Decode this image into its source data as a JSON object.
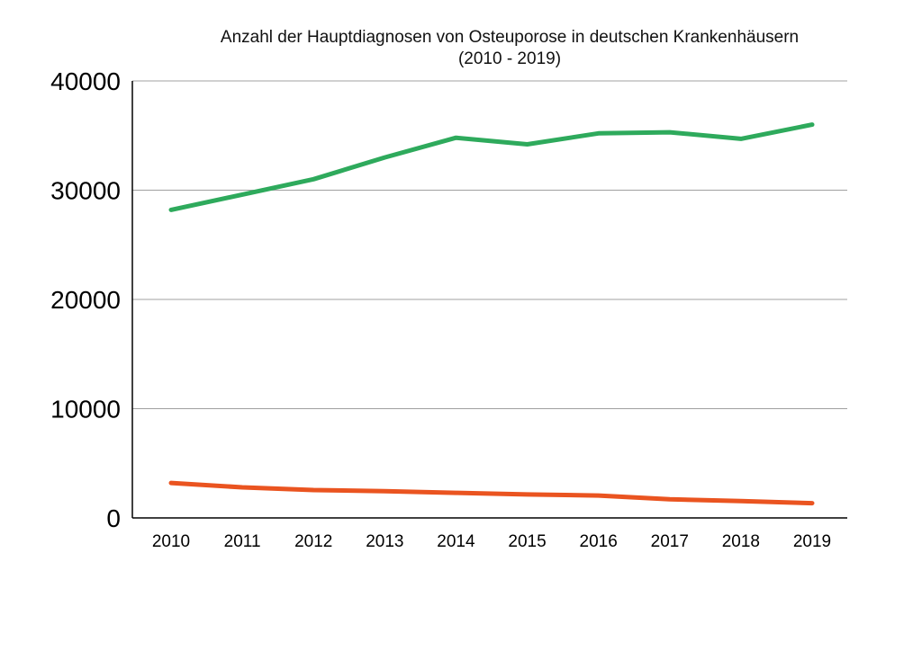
{
  "chart_data": {
    "type": "line",
    "title": "Anzahl der Hauptdiagnosen von Osteuporose in deutschen Krankenhäusern",
    "subtitle": "(2010 - 2019)",
    "xlabel": "",
    "ylabel": "",
    "categories": [
      "2010",
      "2011",
      "2012",
      "2013",
      "2014",
      "2015",
      "2016",
      "2017",
      "2018",
      "2019"
    ],
    "ylim": [
      0,
      40000
    ],
    "yticks": [
      0,
      10000,
      20000,
      30000,
      40000
    ],
    "ytick_labels": [
      "0",
      "10000",
      "20000",
      "30000",
      "40000"
    ],
    "grid": true,
    "legend": "none",
    "series": [
      {
        "color": "#2eaa5c",
        "values": [
          28200,
          29600,
          31000,
          33000,
          34800,
          34200,
          35200,
          35300,
          34700,
          36000
        ]
      },
      {
        "color": "#ea5420",
        "values": [
          3200,
          2800,
          2550,
          2450,
          2300,
          2150,
          2050,
          1700,
          1550,
          1350
        ]
      }
    ]
  }
}
